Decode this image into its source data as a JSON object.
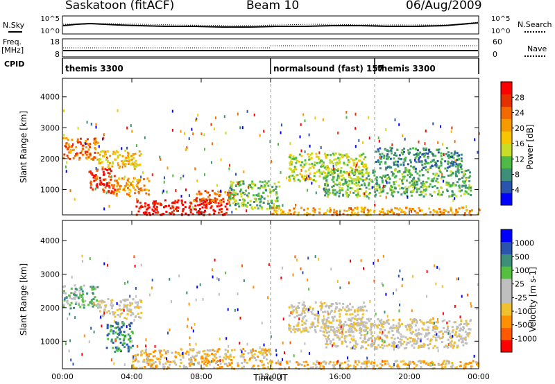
{
  "header": {
    "station": "Saskatoon (fitACF)",
    "beam": "Beam 10",
    "date": "06/Aug/2009"
  },
  "side_labels": {
    "nsky": "N.Sky",
    "nsearch": "N.Search",
    "freq": "Freq.",
    "freq_unit": "[MHz]",
    "nave": "Nave",
    "cpid": "CPID"
  },
  "noise_axis": {
    "top": "10^5",
    "bottom": "10^0",
    "right_top": "10^5",
    "right_bottom": "10^0"
  },
  "freq_axis": {
    "left": [
      "18",
      "8"
    ],
    "right": [
      "60",
      "0"
    ]
  },
  "cpid": {
    "segments": [
      {
        "label": "themis 3300",
        "start_hour": 0
      },
      {
        "label": "normalsound (fast) 157",
        "start_hour": 12
      },
      {
        "label": "themis 3300",
        "start_hour": 18
      }
    ]
  },
  "chart_data": [
    {
      "type": "heatmap",
      "quantity": "Power",
      "ylabel": "Slant Range [km]",
      "xlim": [
        0,
        24
      ],
      "ylim": [
        180,
        4600
      ],
      "yticks": [
        1000,
        2000,
        3000,
        4000
      ],
      "colorbar": {
        "label": "Power [dB]",
        "ticks": [
          "28",
          "24",
          "20",
          "16",
          "12",
          "8",
          "4"
        ],
        "colors": [
          "#0000ff",
          "#2b55ad",
          "#3d8f7a",
          "#4fba45",
          "#c8dc28",
          "#f7c600",
          "#f59b00",
          "#f46a00",
          "#e63000",
          "#ff0000"
        ]
      },
      "echo_regions": [
        {
          "t": [
            0.0,
            2.0
          ],
          "r": [
            2000,
            2700
          ],
          "level": 7
        },
        {
          "t": [
            2.0,
            4.5
          ],
          "r": [
            1700,
            2300
          ],
          "level": 5
        },
        {
          "t": [
            1.5,
            3.0
          ],
          "r": [
            900,
            1700
          ],
          "level": 8
        },
        {
          "t": [
            3.0,
            5.0
          ],
          "r": [
            800,
            1400
          ],
          "level": 6
        },
        {
          "t": [
            4.2,
            9.5
          ],
          "r": [
            200,
            700
          ],
          "level": 9
        },
        {
          "t": [
            7.5,
            10.0
          ],
          "r": [
            600,
            1000
          ],
          "level": 7
        },
        {
          "t": [
            9.5,
            12.5
          ],
          "r": [
            400,
            1300
          ],
          "level": 3
        },
        {
          "t": [
            12.0,
            24.0
          ],
          "r": [
            200,
            450
          ],
          "level": 6
        },
        {
          "t": [
            13.0,
            17.5
          ],
          "r": [
            1300,
            2200
          ],
          "level": 4
        },
        {
          "t": [
            15.0,
            23.5
          ],
          "r": [
            800,
            1700
          ],
          "level": 3
        },
        {
          "t": [
            18.0,
            23.0
          ],
          "r": [
            1700,
            2400
          ],
          "level": 2
        }
      ]
    },
    {
      "type": "heatmap",
      "quantity": "Velocity",
      "xlabel": "Time UT",
      "ylabel": "Slant Range [km]",
      "xlim": [
        0,
        24
      ],
      "ylim": [
        180,
        4600
      ],
      "yticks": [
        1000,
        2000,
        3000,
        4000
      ],
      "xticks": [
        "00:00",
        "04:00",
        "08:00",
        "12:00",
        "16:00",
        "20:00",
        "00:00"
      ],
      "colorbar": {
        "label": "Velocity [m s-1]",
        "ticks": [
          "1000",
          "500",
          "100",
          "25",
          "-25",
          "-100",
          "-500",
          "-1000"
        ],
        "colors": [
          "#ff0000",
          "#ff5a00",
          "#ff9000",
          "#f0c030",
          "#bfbfbf",
          "#bfbfbf",
          "#55c040",
          "#3d8f7a",
          "#2b55ad",
          "#0000ff"
        ]
      },
      "echo_regions": [
        {
          "t": [
            0.0,
            2.0
          ],
          "r": [
            2000,
            2700
          ],
          "level": 6
        },
        {
          "t": [
            2.0,
            4.5
          ],
          "r": [
            1700,
            2300
          ],
          "level": 4
        },
        {
          "t": [
            2.5,
            4.0
          ],
          "r": [
            700,
            1600
          ],
          "level": 7
        },
        {
          "t": [
            4.0,
            12.0
          ],
          "r": [
            200,
            800
          ],
          "level": 3
        },
        {
          "t": [
            12.0,
            24.0
          ],
          "r": [
            200,
            450
          ],
          "level": 3
        },
        {
          "t": [
            13.0,
            17.5
          ],
          "r": [
            1300,
            2200
          ],
          "level": 4
        },
        {
          "t": [
            15.0,
            23.5
          ],
          "r": [
            800,
            1700
          ],
          "level": 4
        }
      ]
    }
  ]
}
